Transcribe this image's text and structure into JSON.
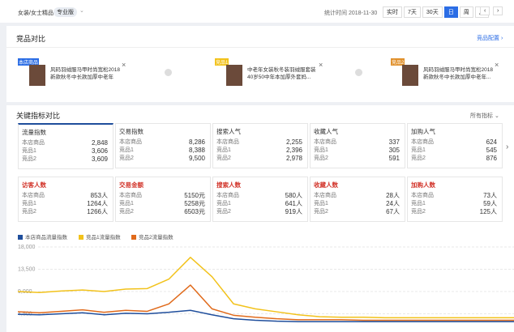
{
  "header": {
    "category": "女装/女士精品",
    "edition": "专业版",
    "time_label": "统计时间 2018-11-30",
    "buttons": [
      "实时",
      "7天",
      "30天",
      "日",
      "周",
      "月"
    ]
  },
  "competitors": {
    "title": "竞品对比",
    "config": "竞品配置",
    "items": [
      {
        "tag": "本店商品",
        "text": "风码羽绒服马甲时尚宽松2018新款秋冬中长款加厚中老年人..."
      },
      {
        "tag": "竞品1",
        "text": "中老年女装秋冬装羽绒服套装40岁50中年本加厚外套妈..."
      },
      {
        "tag": "竞品2",
        "text": "风码羽绒服马甲时尚宽松2018新款秋冬中长款加厚中老年..."
      }
    ]
  },
  "metrics": {
    "title": "关键指标对比",
    "filter": "所有指标",
    "row_labels": [
      "本店商品",
      "竞品1",
      "竞品2"
    ],
    "cards": [
      {
        "name": "流量指数",
        "values": [
          "2,848",
          "3,606",
          "3,609"
        ]
      },
      {
        "name": "交易指数",
        "values": [
          "8,286",
          "8,388",
          "9,500"
        ]
      },
      {
        "name": "搜索人气",
        "values": [
          "2,255",
          "2,396",
          "2,978"
        ]
      },
      {
        "name": "收藏人气",
        "values": [
          "337",
          "305",
          "591"
        ]
      },
      {
        "name": "加购人气",
        "values": [
          "624",
          "545",
          "876"
        ]
      }
    ],
    "red_cards": [
      {
        "name": "访客人数",
        "values": [
          "853人",
          "1264人",
          "1266人"
        ]
      },
      {
        "name": "交易金额",
        "values": [
          "5150元",
          "5258元",
          "6503元"
        ]
      },
      {
        "name": "搜索人数",
        "values": [
          "580人",
          "641人",
          "919人"
        ]
      },
      {
        "name": "收藏人数",
        "values": [
          "28人",
          "24人",
          "67人"
        ]
      },
      {
        "name": "加购人数",
        "values": [
          "73人",
          "59人",
          "125人"
        ]
      }
    ]
  },
  "chart_data": {
    "type": "line",
    "categories": [
      null,
      null,
      null,
      null,
      null,
      null,
      null,
      null,
      null,
      null,
      null,
      null,
      null,
      null,
      null,
      null,
      null,
      null,
      null,
      null,
      null,
      null,
      null,
      null
    ],
    "series": [
      {
        "name": "本店商品流量指数",
        "color": "#1f4e9c",
        "values": [
          4400,
          4300,
          4500,
          4700,
          4300,
          4600,
          4500,
          4800,
          5200,
          4300,
          3500,
          3200,
          3000,
          2900,
          2900,
          2900,
          2900,
          2900,
          2900,
          2900,
          2900,
          2900,
          2900,
          2900
        ]
      },
      {
        "name": "竞品1流量指数",
        "color": "#f2c21b",
        "values": [
          9000,
          8800,
          9100,
          9300,
          9000,
          9500,
          9600,
          11500,
          15900,
          12000,
          6500,
          5500,
          4900,
          4300,
          3900,
          3800,
          3800,
          3700,
          3700,
          3700,
          3700,
          3700,
          3700,
          3700
        ]
      },
      {
        "name": "竞品2流量指数",
        "color": "#e06a1b",
        "values": [
          4900,
          4700,
          5000,
          5300,
          4800,
          5200,
          5000,
          6500,
          10300,
          5500,
          4200,
          3800,
          3500,
          3300,
          3300,
          3300,
          3200,
          3200,
          3200,
          3200,
          3200,
          3200,
          3200,
          3200
        ]
      }
    ],
    "ylim": [
      0,
      18000
    ],
    "yticks": [
      {
        "value": 4500,
        "label": "4,500"
      },
      {
        "value": 9000,
        "label": "9,000"
      },
      {
        "value": 13500,
        "label": "13,500"
      },
      {
        "value": 18000,
        "label": "18,000"
      }
    ],
    "grid": true
  }
}
